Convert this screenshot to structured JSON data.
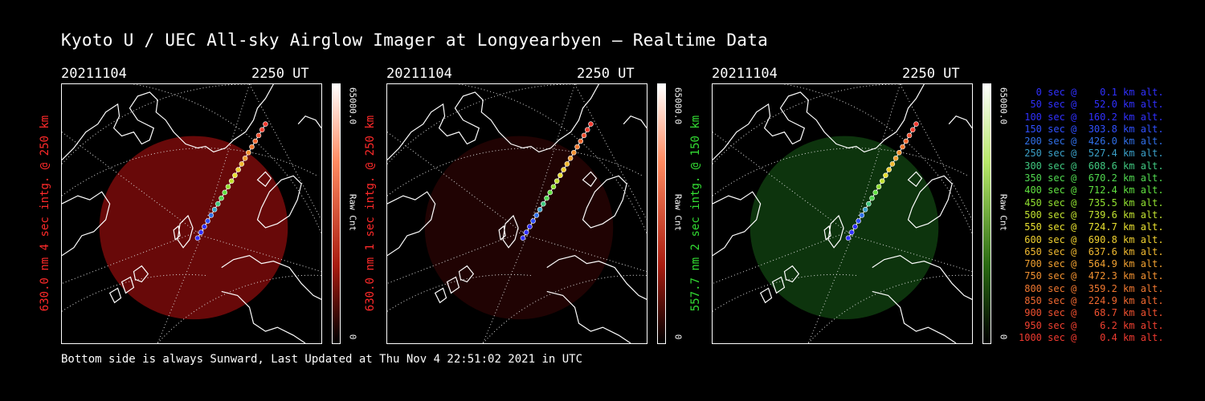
{
  "title": "Kyoto U / UEC All-sky Airglow Imager at Longyearbyen — Realtime Data",
  "footer": "Bottom side is always Sunward, Last Updated at Thu Nov  4 22:51:02 2021 in UTC",
  "panels": [
    {
      "date": "20211104",
      "time": "2250 UT",
      "label": "630.0 nm 4 sec intg. @ 250 km",
      "label_color": "#ff2a2a",
      "colorbar_max": "65000.0",
      "colorbar_min": "0",
      "colorbar_unit": "Raw Cnt",
      "glow_color": "#7a0a0a",
      "glow_opacity": 0.85,
      "bar_top": "#ff8a60",
      "bar_mid": "#a81c10"
    },
    {
      "date": "20211104",
      "time": "2250 UT",
      "label": "630.0 nm 1 sec intg. @ 250 km",
      "label_color": "#ff2a2a",
      "colorbar_max": "65000.0",
      "colorbar_min": "0",
      "colorbar_unit": "Raw Cnt",
      "glow_color": "#3a0606",
      "glow_opacity": 0.55,
      "bar_top": "#ff8a60",
      "bar_mid": "#a81c10"
    },
    {
      "date": "20211104",
      "time": "2250 UT",
      "label": "557.7 nm 2 sec intg. @ 150 km",
      "label_color": "#33dd33",
      "colorbar_max": "65000.0",
      "colorbar_min": "0",
      "colorbar_unit": "Raw Cnt",
      "glow_color": "#0e3a0e",
      "glow_opacity": 0.9,
      "bar_top": "#b8e86a",
      "bar_mid": "#2a6a12"
    }
  ],
  "legend": [
    {
      "text": "   0 sec @    0.1 km alt.",
      "color": "#3030ff"
    },
    {
      "text": "  50 sec @   52.0 km alt.",
      "color": "#3030ff"
    },
    {
      "text": " 100 sec @  160.2 km alt.",
      "color": "#3030ff"
    },
    {
      "text": " 150 sec @  303.8 km alt.",
      "color": "#3050ff"
    },
    {
      "text": " 200 sec @  426.0 km alt.",
      "color": "#3070e8"
    },
    {
      "text": " 250 sec @  527.4 km alt.",
      "color": "#3aa0c8"
    },
    {
      "text": " 300 sec @  608.6 km alt.",
      "color": "#40c880"
    },
    {
      "text": " 350 sec @  670.2 km alt.",
      "color": "#50d850"
    },
    {
      "text": " 400 sec @  712.4 km alt.",
      "color": "#60e040"
    },
    {
      "text": " 450 sec @  735.5 km alt.",
      "color": "#90e030"
    },
    {
      "text": " 500 sec @  739.6 km alt.",
      "color": "#c0e030"
    },
    {
      "text": " 550 sec @  724.7 km alt.",
      "color": "#e8e030"
    },
    {
      "text": " 600 sec @  690.8 km alt.",
      "color": "#f0d030"
    },
    {
      "text": " 650 sec @  637.6 km alt.",
      "color": "#f0b830"
    },
    {
      "text": " 700 sec @  564.9 km alt.",
      "color": "#f0a030"
    },
    {
      "text": " 750 sec @  472.3 km alt.",
      "color": "#f09030"
    },
    {
      "text": " 800 sec @  359.2 km alt.",
      "color": "#f07830"
    },
    {
      "text": " 850 sec @  224.9 km alt.",
      "color": "#f06830"
    },
    {
      "text": " 900 sec @   68.7 km alt.",
      "color": "#f05030"
    },
    {
      "text": " 950 sec @    6.2 km alt.",
      "color": "#f04030"
    },
    {
      "text": "1000 sec @    0.4 km alt.",
      "color": "#f03a30"
    }
  ]
}
